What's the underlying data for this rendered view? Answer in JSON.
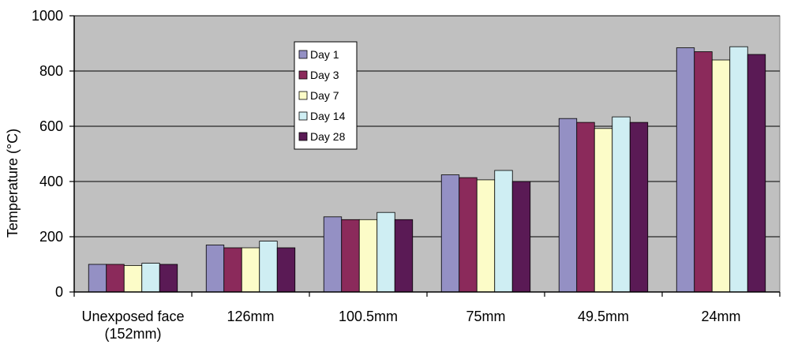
{
  "chart_data": {
    "type": "bar",
    "categories": [
      "Unexposed face\n(152mm)",
      "126mm",
      "100.5mm",
      "75mm",
      "49.5mm",
      "24mm"
    ],
    "series": [
      {
        "name": "Day 1",
        "color": "#9490c4",
        "values": [
          100,
          170,
          272,
          424,
          628,
          884
        ]
      },
      {
        "name": "Day 3",
        "color": "#8b2a5b",
        "values": [
          100,
          160,
          262,
          414,
          614,
          870
        ]
      },
      {
        "name": "Day 7",
        "color": "#fcfcc8",
        "values": [
          96,
          160,
          262,
          406,
          592,
          840
        ]
      },
      {
        "name": "Day 14",
        "color": "#cfeef3",
        "values": [
          104,
          184,
          288,
          440,
          634,
          888
        ]
      },
      {
        "name": "Day 28",
        "color": "#5a1a55",
        "values": [
          100,
          160,
          262,
          400,
          614,
          860
        ]
      }
    ],
    "ylabel": "Temperature (°C)",
    "xlabel": "",
    "ylim": [
      0,
      1000
    ],
    "yticks": [
      0,
      200,
      400,
      600,
      800,
      1000
    ],
    "grid": true,
    "legend_position": "top-center",
    "plot_background": "#c0c0c0"
  }
}
